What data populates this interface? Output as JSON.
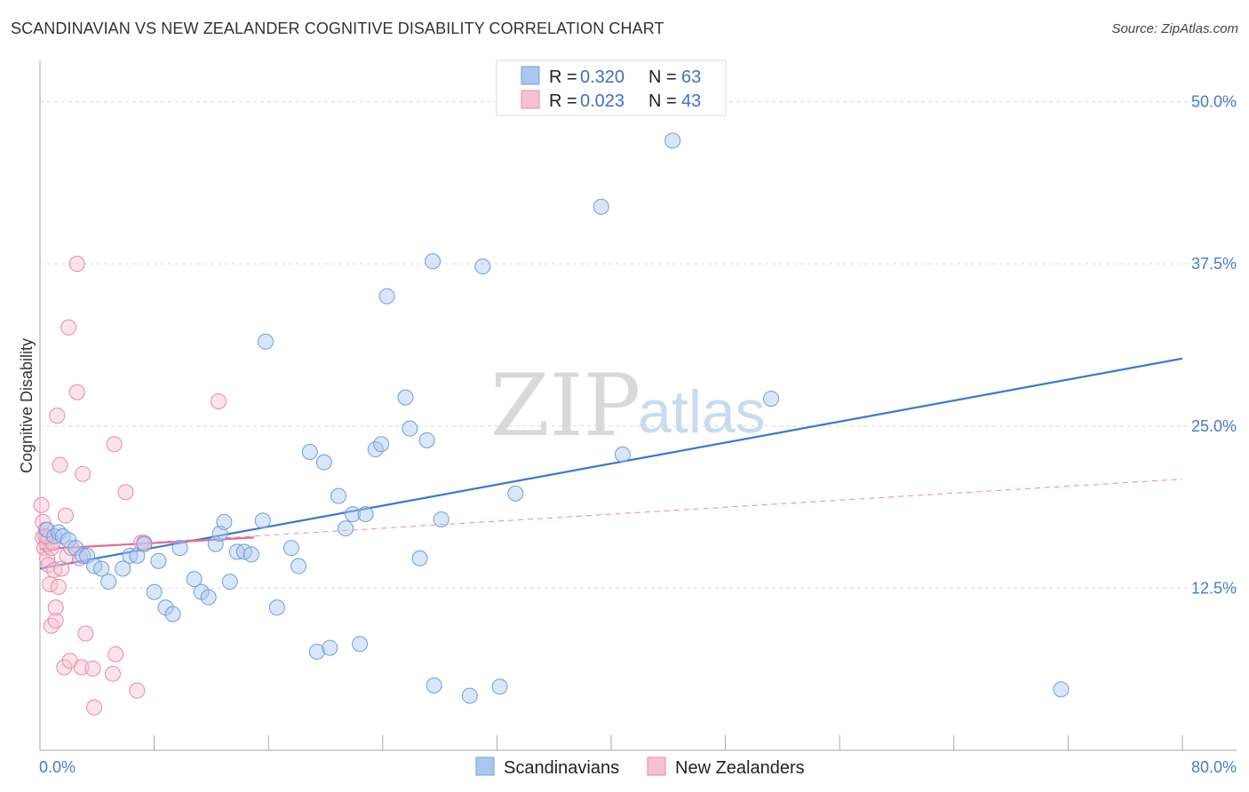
{
  "header": {
    "title": "SCANDINAVIAN VS NEW ZEALANDER COGNITIVE DISABILITY CORRELATION CHART",
    "source": "Source: ZipAtlas.com"
  },
  "watermark": {
    "part1": "ZIP",
    "part2": "atlas"
  },
  "legend_top": [
    {
      "r_label": "R = ",
      "r_value": "0.320",
      "n_label": "N = ",
      "n_value": "63",
      "color": "#a9c8f0",
      "stroke": "#6f9fdc"
    },
    {
      "r_label": "R = ",
      "r_value": "0.023",
      "n_label": "N = ",
      "n_value": "43",
      "color": "#f7c0d0",
      "stroke": "#e88aa8"
    }
  ],
  "legend_bottom": [
    {
      "label": "Scandinavians",
      "color": "#a9c8f0",
      "stroke": "#6f9fdc"
    },
    {
      "label": "New Zealanders",
      "color": "#f7c0d0",
      "stroke": "#e88aa8"
    }
  ],
  "chart_data": {
    "type": "scatter",
    "title": "SCANDINAVIAN VS NEW ZEALANDER COGNITIVE DISABILITY CORRELATION CHART",
    "xlabel": "",
    "ylabel": "Cognitive Disability",
    "xlim": [
      0,
      80
    ],
    "ylim": [
      0,
      52.5
    ],
    "x_tick_labels": [
      "0.0%",
      "80.0%"
    ],
    "y_ticks": [
      12.5,
      25.0,
      37.5,
      50.0
    ],
    "y_tick_labels": [
      "12.5%",
      "25.0%",
      "37.5%",
      "50.0%"
    ],
    "colors": {
      "blue": "#3a78d0",
      "pink": "#e26a95"
    },
    "series": [
      {
        "name": "Scandinavians",
        "r": 0.32,
        "n": 63,
        "trend": {
          "x": [
            0,
            80
          ],
          "y": [
            14.0,
            30.2
          ]
        },
        "points": [
          [
            0.5,
            17.0
          ],
          [
            1.0,
            16.5
          ],
          [
            1.3,
            16.8
          ],
          [
            1.6,
            16.5
          ],
          [
            2.0,
            16.2
          ],
          [
            2.5,
            15.6
          ],
          [
            3.0,
            15.0
          ],
          [
            3.3,
            15.0
          ],
          [
            3.8,
            14.2
          ],
          [
            4.3,
            14.0
          ],
          [
            4.8,
            13.0
          ],
          [
            5.8,
            14.0
          ],
          [
            6.3,
            15.0
          ],
          [
            6.8,
            15.0
          ],
          [
            7.3,
            15.9
          ],
          [
            8.0,
            12.2
          ],
          [
            8.3,
            14.6
          ],
          [
            8.8,
            11.0
          ],
          [
            9.3,
            10.5
          ],
          [
            9.8,
            15.6
          ],
          [
            10.8,
            13.2
          ],
          [
            11.3,
            12.2
          ],
          [
            11.8,
            11.8
          ],
          [
            12.3,
            15.9
          ],
          [
            12.6,
            16.7
          ],
          [
            12.9,
            17.6
          ],
          [
            13.3,
            13.0
          ],
          [
            13.8,
            15.3
          ],
          [
            14.3,
            15.3
          ],
          [
            14.8,
            15.1
          ],
          [
            15.6,
            17.7
          ],
          [
            15.8,
            31.5
          ],
          [
            16.6,
            11.0
          ],
          [
            17.6,
            15.6
          ],
          [
            18.1,
            14.2
          ],
          [
            18.9,
            23.0
          ],
          [
            19.4,
            7.6
          ],
          [
            19.9,
            22.2
          ],
          [
            20.3,
            7.9
          ],
          [
            20.9,
            19.6
          ],
          [
            21.4,
            17.1
          ],
          [
            21.9,
            18.2
          ],
          [
            22.4,
            8.2
          ],
          [
            22.8,
            18.2
          ],
          [
            23.5,
            23.2
          ],
          [
            23.9,
            23.6
          ],
          [
            24.3,
            35.0
          ],
          [
            25.6,
            27.2
          ],
          [
            25.9,
            24.8
          ],
          [
            26.6,
            14.8
          ],
          [
            27.1,
            23.9
          ],
          [
            27.5,
            37.7
          ],
          [
            27.6,
            5.0
          ],
          [
            28.1,
            17.8
          ],
          [
            30.1,
            4.2
          ],
          [
            31.0,
            37.3
          ],
          [
            32.2,
            4.9
          ],
          [
            33.3,
            19.8
          ],
          [
            39.3,
            41.9
          ],
          [
            40.8,
            22.8
          ],
          [
            44.3,
            47.0
          ],
          [
            51.2,
            27.1
          ],
          [
            71.5,
            4.7
          ]
        ]
      },
      {
        "name": "New Zealanders",
        "r": 0.023,
        "n": 43,
        "trend_solid": {
          "x": [
            0,
            15.0
          ],
          "y": [
            15.5,
            16.4
          ]
        },
        "trend_dashed": {
          "x": [
            0,
            80
          ],
          "y": [
            15.5,
            20.9
          ]
        },
        "points": [
          [
            0.1,
            18.9
          ],
          [
            0.2,
            17.6
          ],
          [
            0.2,
            16.4
          ],
          [
            0.3,
            15.6
          ],
          [
            0.4,
            17.0
          ],
          [
            0.5,
            14.8
          ],
          [
            0.5,
            15.9
          ],
          [
            0.6,
            16.4
          ],
          [
            0.6,
            14.3
          ],
          [
            0.7,
            12.8
          ],
          [
            0.8,
            15.6
          ],
          [
            0.8,
            9.6
          ],
          [
            0.9,
            16.0
          ],
          [
            1.0,
            13.9
          ],
          [
            1.1,
            10.0
          ],
          [
            1.1,
            11.0
          ],
          [
            1.2,
            25.8
          ],
          [
            1.3,
            12.6
          ],
          [
            1.4,
            22.0
          ],
          [
            1.5,
            14.0
          ],
          [
            1.7,
            6.4
          ],
          [
            1.8,
            18.1
          ],
          [
            1.9,
            15.0
          ],
          [
            2.1,
            6.9
          ],
          [
            2.2,
            15.6
          ],
          [
            2.6,
            37.5
          ],
          [
            2.6,
            27.6
          ],
          [
            2.8,
            14.8
          ],
          [
            2.9,
            6.4
          ],
          [
            3.0,
            21.3
          ],
          [
            3.2,
            9.0
          ],
          [
            3.7,
            6.3
          ],
          [
            3.8,
            3.3
          ],
          [
            5.1,
            5.9
          ],
          [
            5.2,
            23.6
          ],
          [
            5.3,
            7.4
          ],
          [
            6.0,
            19.9
          ],
          [
            6.8,
            4.6
          ],
          [
            7.1,
            16.0
          ],
          [
            7.3,
            16.0
          ],
          [
            12.5,
            26.9
          ],
          [
            0.4,
            16.5
          ],
          [
            2.0,
            32.6
          ]
        ]
      }
    ]
  }
}
